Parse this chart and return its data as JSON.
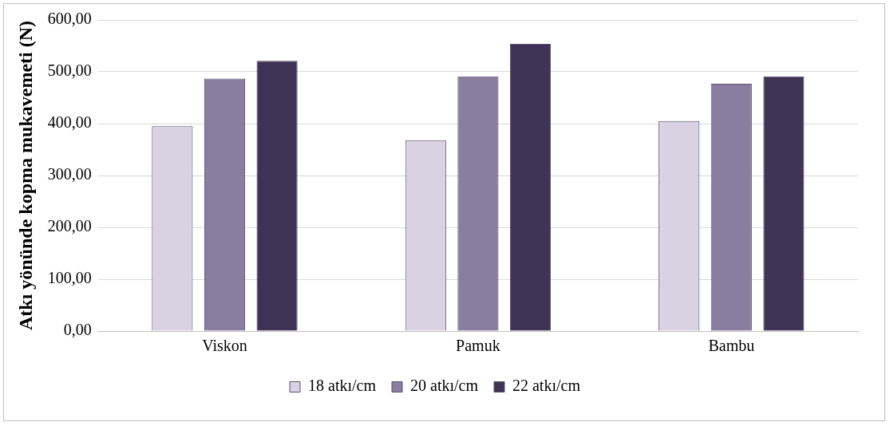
{
  "chart_data": {
    "type": "bar",
    "ylabel": "Atkı yönünde kopma mukavemeti (N)",
    "categories": [
      "Viskon",
      "Pamuk",
      "Bambu"
    ],
    "series": [
      {
        "name": "18 atkı/cm",
        "color": "#d8d2e2",
        "values": [
          395,
          368,
          405
        ]
      },
      {
        "name": "20 atkı/cm",
        "color": "#8a7ea0",
        "values": [
          487,
          491,
          477
        ]
      },
      {
        "name": "22 atkı/cm",
        "color": "#3f3356",
        "values": [
          521,
          554,
          491
        ]
      }
    ],
    "ylim": [
      0,
      600
    ],
    "yticks": [
      {
        "value": 0,
        "label": "0,00"
      },
      {
        "value": 100,
        "label": "100,00"
      },
      {
        "value": 200,
        "label": "200,00"
      },
      {
        "value": 300,
        "label": "300,00"
      },
      {
        "value": 400,
        "label": "400,00"
      },
      {
        "value": 500,
        "label": "500,00"
      },
      {
        "value": 600,
        "label": "600,00"
      }
    ],
    "grid": "y",
    "legend": "bottom"
  }
}
